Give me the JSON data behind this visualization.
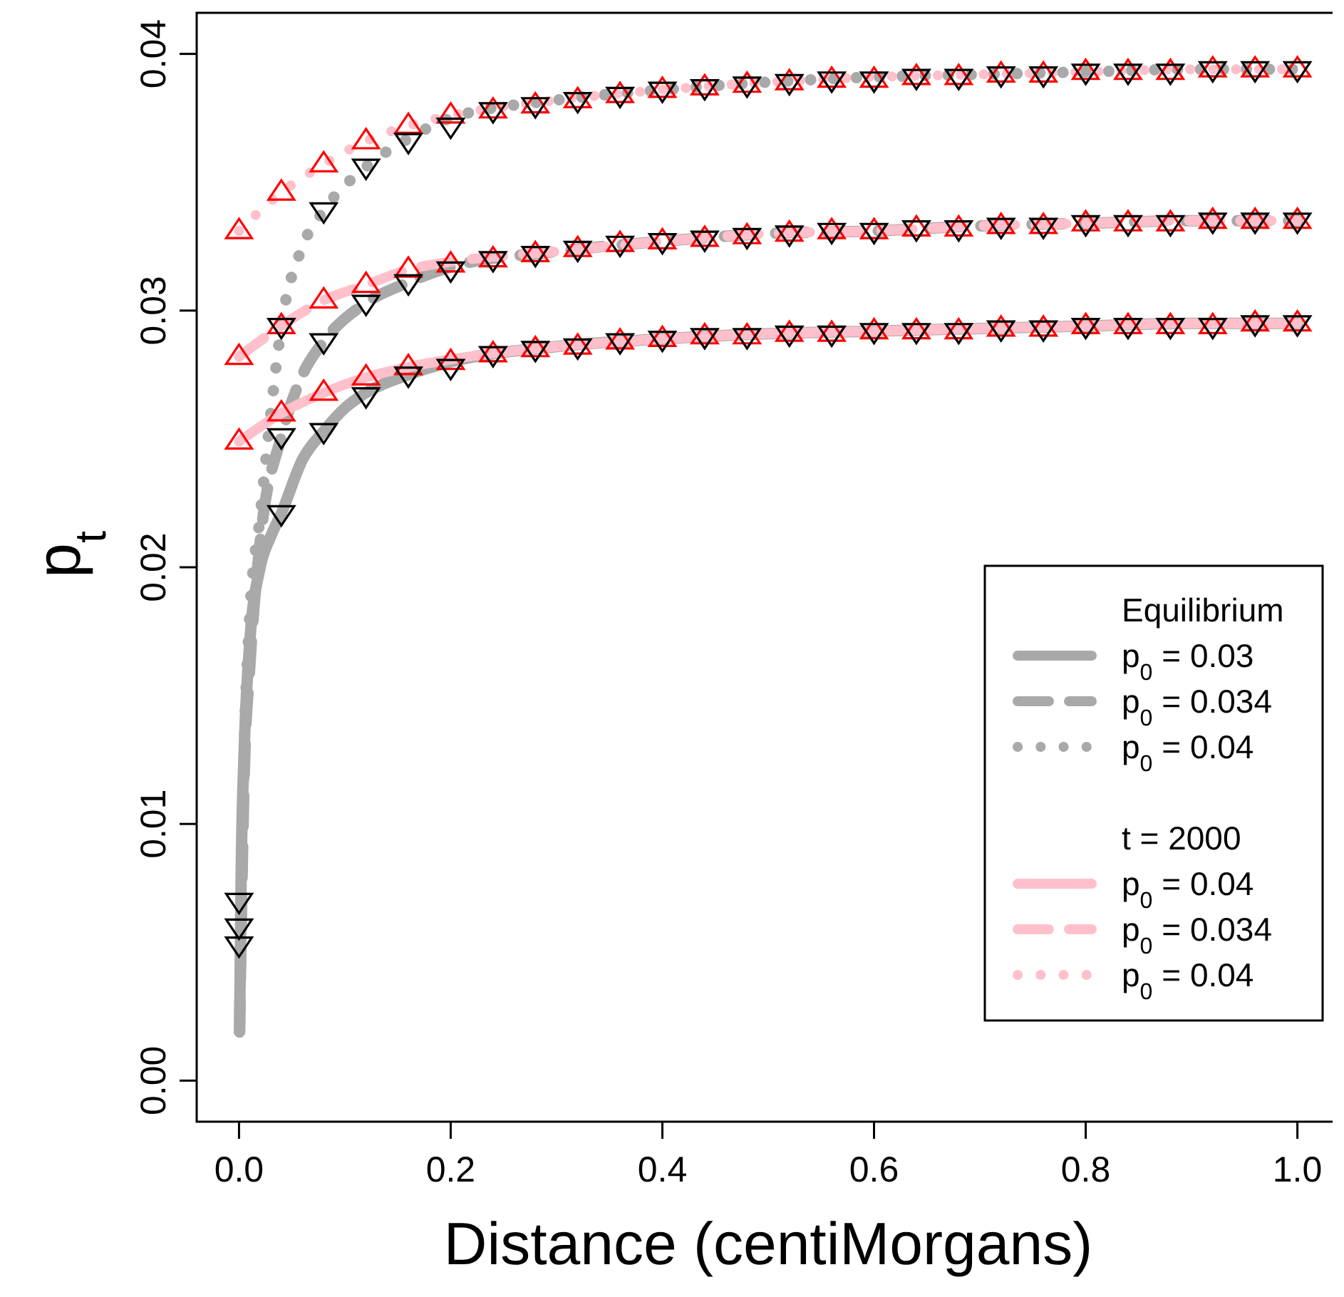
{
  "chart_data": {
    "type": "line",
    "xlabel": "Distance (centiMorgans)",
    "ylabel": "p$_{t}$",
    "xlim": [
      -0.04,
      1.04
    ],
    "ylim": [
      -0.0016,
      0.0416
    ],
    "xticks": [
      {
        "value": 0,
        "label": "0.0"
      },
      0.2,
      0.4,
      0.6,
      0.8,
      {
        "value": 1,
        "label": "1.0"
      }
    ],
    "yticks": [
      {
        "value": 0,
        "label": "0.00"
      },
      0.01,
      0.02,
      0.03,
      0.04
    ],
    "grid": false,
    "legend": "right",
    "legend_title": "Equilibrium",
    "annotations": [
      "t = 2000"
    ],
    "series": [
      {
        "name": "p$_{0}$ = 0.03",
        "color": "#a9a9a9",
        "line_style": "solid",
        "x": [
          0.0005,
          0.002,
          0.005,
          0.01,
          0.02,
          0.03,
          0.04,
          0.06,
          0.08,
          0.1,
          0.12,
          0.16,
          0.2,
          0.3,
          0.4,
          0.5,
          0.6,
          0.7,
          0.8,
          0.9,
          1.0
        ],
        "values": [
          0.0019,
          0.008,
          0.013,
          0.017,
          0.02,
          0.0212,
          0.0221,
          0.0242,
          0.0253,
          0.0262,
          0.0268,
          0.0275,
          0.028,
          0.0286,
          0.0289,
          0.0291,
          0.0292,
          0.0293,
          0.0294,
          0.0295,
          0.0295
        ]
      },
      {
        "name": "p$_{0}$ = 0.034",
        "color": "#a9a9a9",
        "line_style": "dashed",
        "x": [
          0.0005,
          0.005,
          0.01,
          0.02,
          0.04,
          0.06,
          0.08,
          0.12,
          0.16,
          0.2,
          0.3,
          0.4,
          0.5,
          0.6,
          0.7,
          0.8,
          0.9,
          1.0
        ],
        "values": [
          0.0019,
          0.012,
          0.016,
          0.021,
          0.0251,
          0.0275,
          0.0288,
          0.0303,
          0.0311,
          0.0317,
          0.0323,
          0.0327,
          0.033,
          0.0331,
          0.0333,
          0.0334,
          0.0335,
          0.0335
        ]
      },
      {
        "name": "p$_{0}$ = 0.04",
        "color": "#a9a9a9",
        "line_style": "dotted",
        "x": [
          0.0005,
          0.005,
          0.01,
          0.02,
          0.03,
          0.04,
          0.06,
          0.08,
          0.12,
          0.16,
          0.2,
          0.3,
          0.4,
          0.5,
          0.6,
          0.7,
          0.8,
          0.9,
          1.0
        ],
        "values": [
          0.0019,
          0.013,
          0.018,
          0.022,
          0.026,
          0.0294,
          0.0325,
          0.0339,
          0.0356,
          0.0367,
          0.0375,
          0.0382,
          0.0386,
          0.0389,
          0.0391,
          0.0392,
          0.0393,
          0.0394,
          0.0394
        ]
      },
      {
        "name": "p$_{0}$ = 0.04",
        "color": "#ffc0cb",
        "line_style": "solid",
        "x": [
          0,
          0.04,
          0.08,
          0.12,
          0.16,
          0.2,
          0.3,
          0.4,
          0.5,
          0.6,
          0.7,
          0.8,
          0.9,
          1.0
        ],
        "values": [
          0.0249,
          0.026,
          0.0268,
          0.0274,
          0.0278,
          0.0281,
          0.0286,
          0.0289,
          0.0291,
          0.0292,
          0.0293,
          0.0294,
          0.0295,
          0.0295
        ]
      },
      {
        "name": "p$_{0}$ = 0.034",
        "color": "#ffc0cb",
        "line_style": "dashed",
        "x": [
          0,
          0.04,
          0.08,
          0.12,
          0.16,
          0.2,
          0.3,
          0.4,
          0.5,
          0.6,
          0.7,
          0.8,
          0.9,
          1.0
        ],
        "values": [
          0.0282,
          0.0294,
          0.0304,
          0.031,
          0.0316,
          0.0319,
          0.0323,
          0.0327,
          0.033,
          0.0331,
          0.0333,
          0.0334,
          0.0335,
          0.0335
        ]
      },
      {
        "name": "p$_{0}$ = 0.04",
        "color": "#ffc0cb",
        "line_style": "dotted",
        "x": [
          0,
          0.04,
          0.08,
          0.12,
          0.16,
          0.2,
          0.3,
          0.4,
          0.5,
          0.6,
          0.7,
          0.8,
          0.9,
          1.0
        ],
        "values": [
          0.0331,
          0.0346,
          0.0357,
          0.0366,
          0.0372,
          0.0376,
          0.0382,
          0.0386,
          0.0389,
          0.0391,
          0.0392,
          0.0393,
          0.0394,
          0.0394
        ]
      },
      {
        "type": "scatter",
        "marker": "triangle",
        "color": "#ff0000",
        "x": [
          0,
          0.04,
          0.08,
          0.12,
          0.16,
          0.2,
          0.24,
          0.28,
          0.32,
          0.36,
          0.4,
          0.44,
          0.48,
          0.52,
          0.56,
          0.6,
          0.64,
          0.68,
          0.72,
          0.76,
          0.8,
          0.84,
          0.88,
          0.92,
          0.96,
          1.0
        ],
        "values": [
          0.0249,
          0.026,
          0.0268,
          0.0274,
          0.0278,
          0.028,
          0.0283,
          0.0285,
          0.0286,
          0.0288,
          0.0289,
          0.029,
          0.029,
          0.0291,
          0.0291,
          0.0292,
          0.0292,
          0.0292,
          0.0293,
          0.0293,
          0.0294,
          0.0294,
          0.0294,
          0.0294,
          0.0295,
          0.0295
        ]
      },
      {
        "type": "scatter",
        "marker": "triangle",
        "color": "#ff0000",
        "x": [
          0,
          0.04,
          0.08,
          0.12,
          0.16,
          0.2,
          0.24,
          0.28,
          0.32,
          0.36,
          0.4,
          0.44,
          0.48,
          0.52,
          0.56,
          0.6,
          0.64,
          0.68,
          0.72,
          0.76,
          0.8,
          0.84,
          0.88,
          0.92,
          0.96,
          1.0
        ],
        "values": [
          0.0282,
          0.0294,
          0.0304,
          0.031,
          0.0316,
          0.0318,
          0.032,
          0.0322,
          0.0324,
          0.0326,
          0.0327,
          0.0328,
          0.0329,
          0.033,
          0.0331,
          0.0331,
          0.0332,
          0.0332,
          0.0333,
          0.0333,
          0.0334,
          0.0334,
          0.0334,
          0.0335,
          0.0335,
          0.0335
        ]
      },
      {
        "type": "scatter",
        "marker": "triangle",
        "color": "#ff0000",
        "x": [
          0,
          0.04,
          0.08,
          0.12,
          0.16,
          0.2,
          0.24,
          0.28,
          0.32,
          0.36,
          0.4,
          0.44,
          0.48,
          0.52,
          0.56,
          0.6,
          0.64,
          0.68,
          0.72,
          0.76,
          0.8,
          0.84,
          0.88,
          0.92,
          0.96,
          1.0
        ],
        "values": [
          0.0331,
          0.0346,
          0.0357,
          0.0366,
          0.0372,
          0.0376,
          0.0378,
          0.038,
          0.0382,
          0.0384,
          0.0386,
          0.0387,
          0.0388,
          0.0389,
          0.039,
          0.039,
          0.0391,
          0.0391,
          0.0392,
          0.0392,
          0.0393,
          0.0393,
          0.0393,
          0.0394,
          0.0394,
          0.0394
        ]
      },
      {
        "type": "scatter",
        "marker": "triangle-down",
        "color": "#000000",
        "x": [
          0,
          0.04,
          0.08,
          0.12,
          0.16,
          0.2,
          0.24,
          0.28,
          0.32,
          0.36,
          0.4,
          0.44,
          0.48,
          0.52,
          0.56,
          0.6,
          0.64,
          0.68,
          0.72,
          0.76,
          0.8,
          0.84,
          0.88,
          0.92,
          0.96,
          1.0
        ],
        "values": [
          0.0053,
          0.0221,
          0.0253,
          0.0267,
          0.0275,
          0.0278,
          0.0283,
          0.0285,
          0.0286,
          0.0288,
          0.0289,
          0.029,
          0.029,
          0.0291,
          0.0291,
          0.0292,
          0.0292,
          0.0292,
          0.0293,
          0.0293,
          0.0294,
          0.0294,
          0.0294,
          0.0294,
          0.0295,
          0.0295
        ]
      },
      {
        "type": "scatter",
        "marker": "triangle-down",
        "color": "#000000",
        "x": [
          0,
          0.04,
          0.08,
          0.12,
          0.16,
          0.2,
          0.24,
          0.28,
          0.32,
          0.36,
          0.4,
          0.44,
          0.48,
          0.52,
          0.56,
          0.6,
          0.64,
          0.68,
          0.72,
          0.76,
          0.8,
          0.84,
          0.88,
          0.92,
          0.96,
          1.0
        ],
        "values": [
          0.006,
          0.0251,
          0.0288,
          0.0303,
          0.0311,
          0.0316,
          0.032,
          0.0322,
          0.0324,
          0.0326,
          0.0327,
          0.0328,
          0.0329,
          0.033,
          0.0331,
          0.0331,
          0.0332,
          0.0332,
          0.0333,
          0.0333,
          0.0334,
          0.0334,
          0.0334,
          0.0335,
          0.0335,
          0.0335
        ]
      },
      {
        "type": "scatter",
        "marker": "triangle-down",
        "color": "#000000",
        "x": [
          0,
          0.04,
          0.08,
          0.12,
          0.16,
          0.2,
          0.24,
          0.28,
          0.32,
          0.36,
          0.4,
          0.44,
          0.48,
          0.52,
          0.56,
          0.6,
          0.64,
          0.68,
          0.72,
          0.76,
          0.8,
          0.84,
          0.88,
          0.92,
          0.96,
          1.0
        ],
        "values": [
          0.007,
          0.0294,
          0.0339,
          0.0356,
          0.0366,
          0.0372,
          0.0378,
          0.038,
          0.0382,
          0.0384,
          0.0386,
          0.0387,
          0.0388,
          0.0389,
          0.039,
          0.039,
          0.0391,
          0.0391,
          0.0392,
          0.0392,
          0.0393,
          0.0393,
          0.0393,
          0.0394,
          0.0394,
          0.0394
        ]
      }
    ]
  }
}
